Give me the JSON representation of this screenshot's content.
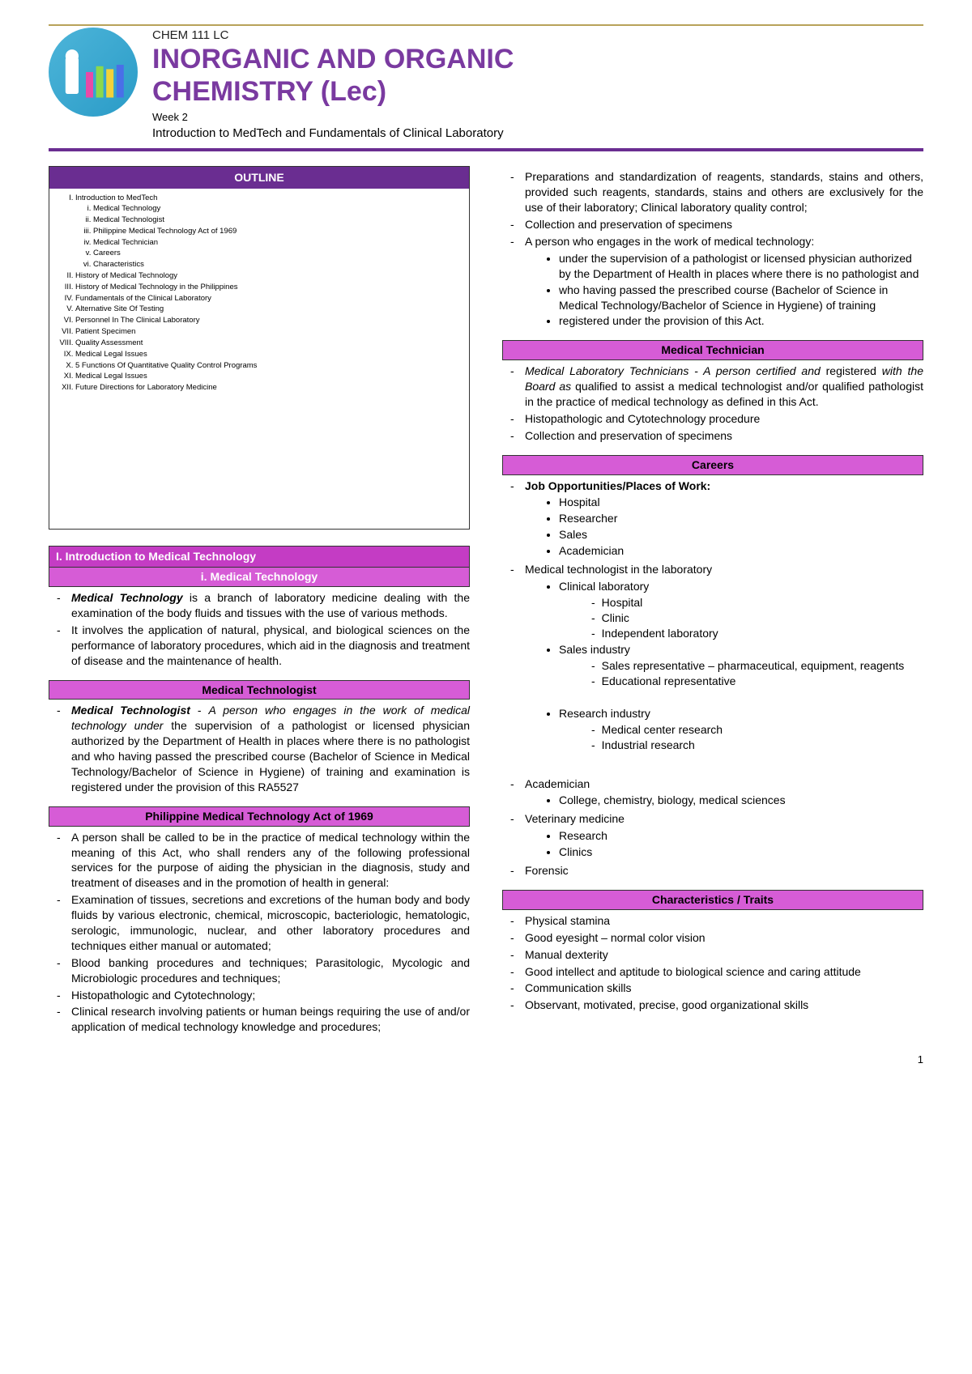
{
  "header": {
    "course_code": "CHEM 111 LC",
    "title_line1": "INORGANIC AND ORGANIC",
    "title_line2": "CHEMISTRY (Lec)",
    "week": "Week 2",
    "subtitle": "Introduction to MedTech and Fundamentals of Clinical Laboratory",
    "colors": {
      "title": "#7a3aa0",
      "rule": "#6a2d91",
      "topline": "#b8a259"
    }
  },
  "outline": {
    "header": "OUTLINE",
    "items": [
      {
        "label": "Introduction to MedTech",
        "sub": [
          "Medical Technology",
          "Medical Technologist",
          "Philippine Medical Technology Act of 1969",
          "Medical Technician",
          "Careers",
          "Characteristics"
        ]
      },
      {
        "label": "History of Medical Technology"
      },
      {
        "label": "History of Medical Technology in the Philippines"
      },
      {
        "label": "Fundamentals of the Clinical Laboratory"
      },
      {
        "label": "Alternative Site Of Testing"
      },
      {
        "label": "Personnel In The Clinical Laboratory"
      },
      {
        "label": "Patient Specimen"
      },
      {
        "label": "Quality Assessment"
      },
      {
        "label": "Medical Legal Issues"
      },
      {
        "label": "5 Functions Of Quantitative Quality Control Programs"
      },
      {
        "label": "Medical Legal Issues"
      },
      {
        "label": "Future Directions for Laboratory Medicine"
      }
    ]
  },
  "sections": {
    "intro_main": "I.      Introduction to Medical Technology",
    "medtech_sub": "i.       Medical Technology",
    "medtech_items": [
      "<span class='ital bold'>Medical Technology</span> is a branch of laboratory medicine dealing with the examination of the body fluids and tissues with the use of various methods.",
      "It involves the application of natural, physical, and biological sciences on the performance of laboratory procedures, which aid in the diagnosis and treatment of disease and the maintenance of health."
    ],
    "medtechologist_hdr": "Medical Technologist",
    "medtechologist_items": [
      "<span class='ital bold'>Medical Technologist</span> - <span class='ital'>A person who engages in the work of medical technology under</span> the supervision of a pathologist or licensed physician authorized by the Department of Health in places where there is no pathologist and who having passed the prescribed course (Bachelor of Science in Medical Technology/Bachelor of Science in Hygiene) of training and examination is registered under the provision of this RA5527"
    ],
    "act_hdr": "Philippine Medical Technology Act of 1969",
    "act_items": [
      "A person shall be called to be in the practice of medical technology within the meaning of this Act, who shall renders any of the following professional services for the purpose of aiding the physician in the diagnosis, study and treatment of diseases and in the promotion of health in general:",
      "Examination of tissues, secretions and excretions of the human body and body fluids by various electronic, chemical, microscopic, bacteriologic, hematologic, serologic, immunologic, nuclear, and other laboratory procedures and techniques either manual or automated;",
      "Blood banking procedures and techniques; Parasitologic, Mycologic and Microbiologic procedures and techniques;",
      "Histopathologic and Cytotechnology;",
      "Clinical research involving patients or human beings requiring the use of and/or application of medical technology knowledge and procedures;"
    ],
    "right_top": [
      "Preparations and standardization of reagents, standards, stains and others, provided such reagents, standards, stains and others are exclusively for the use of their laboratory; Clinical laboratory quality control;",
      "Collection and preservation of specimens",
      "A person who engages in the work of medical technology:"
    ],
    "right_top_sub": [
      "under the supervision of a pathologist or licensed physician authorized by the Department of Health in places where there is no pathologist and",
      "who having passed the prescribed course (Bachelor of Science in Medical Technology/Bachelor of Science in Hygiene) of training",
      "registered under the provision of this Act."
    ],
    "medtechnician_hdr": "Medical Technician",
    "medtechnician_items": [
      "<span class='ital'>Medical Laboratory Technicians - A person certified and</span> registered <span class='ital'>with the Board as</span> qualified to assist a medical technologist and/or qualified pathologist in the practice of medical technology as defined in this Act.",
      "Histopathologic and Cytotechnology procedure",
      "Collection and preservation of specimens"
    ],
    "careers_hdr": "Careers",
    "careers_intro": "<span class='bold'>Job Opportunities/Places of Work:</span>",
    "careers_bullets": [
      "Hospital",
      "Researcher",
      "Sales",
      "Academician"
    ],
    "careers_lab": "Medical technologist in the laboratory",
    "careers_lab_sub": [
      {
        "label": "Clinical laboratory",
        "sub": [
          "Hospital",
          "Clinic",
          "Independent laboratory"
        ]
      },
      {
        "label": "Sales industry",
        "sub": [
          "Sales representative – pharmaceutical, equipment, reagents",
          "Educational representative"
        ]
      },
      {
        "label": "Research industry",
        "sub": [
          "Medical center research",
          "Industrial research"
        ]
      }
    ],
    "careers_acad": "Academician",
    "careers_acad_sub": [
      "College, chemistry, biology, medical sciences"
    ],
    "careers_vet": "Veterinary medicine",
    "careers_vet_sub": [
      "Research",
      "Clinics"
    ],
    "careers_forensic": "Forensic",
    "traits_hdr": "Characteristics / Traits",
    "traits": [
      "Physical stamina",
      "Good eyesight – normal color vision",
      "Manual dexterity",
      "Good intellect and aptitude to biological science and caring attitude",
      "Communication skills",
      "Observant, motivated, precise, good organizational skills"
    ]
  },
  "page_number": "1"
}
